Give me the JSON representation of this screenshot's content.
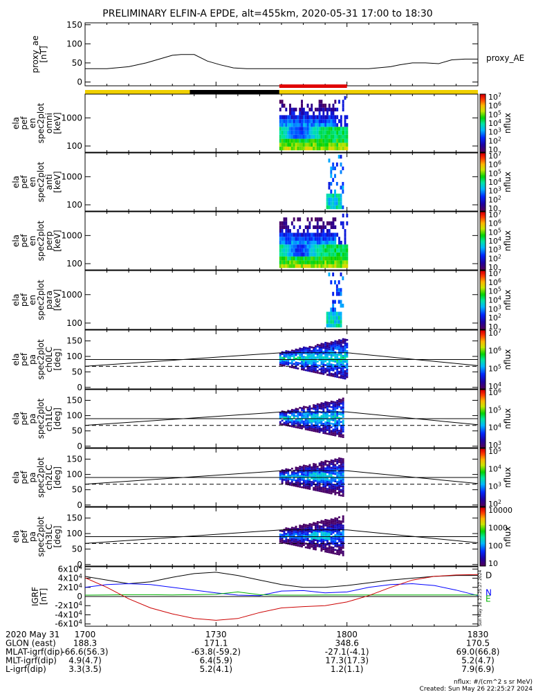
{
  "title": "PRELIMINARY ELFIN-A EPDE, alt=455km, 2020-05-31 17:00 to 18:30",
  "footer": {
    "units": "nflux: #/(cm^2 s sr MeV)",
    "created": "Created: Sun May 26 22:25:27 2024",
    "side_stamp": "Sun May 26 22:25:27 2024"
  },
  "time_axis": {
    "ticks": [
      "1700",
      "1730",
      "1800",
      "1830"
    ],
    "tick_minutes": [
      0,
      30,
      60,
      90
    ],
    "range_minutes": [
      0,
      90
    ],
    "rows": [
      {
        "label": "2020 May 31",
        "values": [
          "1700",
          "1730",
          "1800",
          "1830"
        ]
      },
      {
        "label": "GLON (east)",
        "values": [
          "188.3",
          "171.1",
          "348.6",
          "170.5"
        ]
      },
      {
        "label": "MLAT-igrf(dip)",
        "values": [
          "-66.6(56.3)",
          "-63.8(-59.2)",
          "-27.1(-4.1)",
          "69.0(66.8)"
        ]
      },
      {
        "label": "MLT-igrf(dip)",
        "values": [
          "4.9(4.7)",
          "6.4(5.9)",
          "17.3(17.3)",
          "5.2(4.7)"
        ]
      },
      {
        "label": "L-igrf(dip)",
        "values": [
          "3.3(3.5)",
          "5.2(4.1)",
          "1.2(1.1)",
          "7.9(6.9)"
        ]
      }
    ]
  },
  "status_bar": {
    "colors": {
      "yellow": "#f0d000",
      "black": "#000000",
      "red": "#e00000"
    },
    "segments": [
      {
        "color": "yellow",
        "start": 0,
        "end": 24
      },
      {
        "color": "black",
        "start": 24,
        "end": 44.5
      },
      {
        "color": "yellow",
        "start": 44.5,
        "end": 90
      }
    ],
    "science": {
      "color": "red",
      "start": 44.5,
      "end": 60
    }
  },
  "chart_data": [
    {
      "type": "line",
      "panel": "proxy_ae",
      "ylabel": [
        "proxy_ae",
        "[nT]"
      ],
      "legend": "proxy_AE",
      "ylim": [
        -10,
        155
      ],
      "yticks": [
        0,
        50,
        100,
        150
      ],
      "x": [
        0,
        5,
        10,
        14,
        17,
        20,
        22,
        25,
        28,
        31,
        34,
        37,
        40,
        45,
        50,
        55,
        60,
        65,
        70,
        72,
        75,
        78,
        81,
        84,
        87,
        90
      ],
      "y": [
        35,
        35,
        40,
        50,
        60,
        70,
        72,
        72,
        55,
        45,
        37,
        35,
        35,
        35,
        35,
        35,
        35,
        35,
        40,
        45,
        50,
        50,
        48,
        58,
        60,
        60
      ]
    },
    {
      "type": "heatmap",
      "panel": "omni",
      "ylabel": [
        "ela",
        "pef",
        "en",
        "spec2plot",
        "omni",
        "[keV]"
      ],
      "ylog": true,
      "ylim": [
        60,
        7000
      ],
      "yticks": [
        100,
        1000
      ],
      "ytick_labels": [
        "100",
        "1000"
      ],
      "colorbar": {
        "label": "nflux",
        "ticks": [
          "10",
          "10^2",
          "10^3",
          "10^4",
          "10^5",
          "10^6",
          "10^7"
        ]
      },
      "coverage_minutes": [
        44.5,
        60
      ]
    },
    {
      "type": "heatmap",
      "panel": "anti",
      "ylabel": [
        "ela",
        "pef",
        "en",
        "spec2plot",
        "anti",
        "[keV]"
      ],
      "ylog": true,
      "ylim": [
        60,
        7000
      ],
      "yticks": [
        100,
        1000
      ],
      "ytick_labels": [
        "100",
        "1000"
      ],
      "colorbar": {
        "label": "nflux",
        "ticks": [
          "10",
          "10^2",
          "10^3",
          "10^4",
          "10^5",
          "10^6",
          "10^7"
        ]
      },
      "coverage_minutes": [
        53,
        59
      ]
    },
    {
      "type": "heatmap",
      "panel": "perp",
      "ylabel": [
        "ela",
        "pef",
        "en",
        "spec2plot",
        "perp",
        "[keV]"
      ],
      "ylog": true,
      "ylim": [
        60,
        7000
      ],
      "yticks": [
        100,
        1000
      ],
      "ytick_labels": [
        "100",
        "1000"
      ],
      "colorbar": {
        "label": "nflux",
        "ticks": [
          "10",
          "10^2",
          "10^3",
          "10^4",
          "10^5",
          "10^6",
          "10^7"
        ]
      },
      "coverage_minutes": [
        44.5,
        60
      ]
    },
    {
      "type": "heatmap",
      "panel": "para",
      "ylabel": [
        "ela",
        "pef",
        "en",
        "spec2plot",
        "para",
        "[keV]"
      ],
      "ylog": true,
      "ylim": [
        60,
        7000
      ],
      "yticks": [
        100,
        1000
      ],
      "ytick_labels": [
        "100",
        "1000"
      ],
      "colorbar": {
        "label": "nflux",
        "ticks": [
          "10",
          "10^2",
          "10^3",
          "10^4",
          "10^5",
          "10^6",
          "10^7"
        ]
      },
      "coverage_minutes": [
        53,
        59
      ]
    },
    {
      "type": "heatmap",
      "panel": "ch0LC",
      "ylabel": [
        "ela",
        "pef",
        "pa",
        "spec2plot",
        "ch0LC",
        "[deg]"
      ],
      "ylim": [
        -5,
        185
      ],
      "yticks": [
        0,
        50,
        100,
        150
      ],
      "ytick_labels": [
        "0",
        "50",
        "100",
        "150"
      ],
      "colorbar": {
        "label": "nflux",
        "ticks": [
          "10^4",
          "10^5",
          "10^6",
          "10^7"
        ]
      },
      "coverage_minutes": [
        44.5,
        60
      ]
    },
    {
      "type": "heatmap",
      "panel": "ch1LC",
      "ylabel": [
        "ela",
        "pef",
        "pa",
        "spec2plot",
        "ch1LC",
        "[deg]"
      ],
      "ylim": [
        -5,
        185
      ],
      "yticks": [
        0,
        50,
        100,
        150
      ],
      "ytick_labels": [
        "0",
        "50",
        "100",
        "150"
      ],
      "colorbar": {
        "label": "nflux",
        "ticks": [
          "10^3",
          "10^4",
          "10^5",
          "10^6"
        ]
      },
      "coverage_minutes": [
        44.5,
        59
      ]
    },
    {
      "type": "heatmap",
      "panel": "ch2LC",
      "ylabel": [
        "ela",
        "pef",
        "pa",
        "spec2plot",
        "ch2LC",
        "[deg]"
      ],
      "ylim": [
        -5,
        185
      ],
      "yticks": [
        0,
        50,
        100,
        150
      ],
      "ytick_labels": [
        "0",
        "50",
        "100",
        "150"
      ],
      "colorbar": {
        "label": "nflux",
        "ticks": [
          "10^2",
          "10^3",
          "10^4",
          "10^5"
        ]
      },
      "coverage_minutes": [
        44.5,
        59
      ]
    },
    {
      "type": "heatmap",
      "panel": "ch3LC",
      "ylabel": [
        "ela",
        "pef",
        "pa",
        "spec2plot",
        "ch3LC",
        "[deg]"
      ],
      "ylim": [
        -5,
        185
      ],
      "yticks": [
        0,
        50,
        100,
        150
      ],
      "ytick_labels": [
        "0",
        "50",
        "100",
        "150"
      ],
      "colorbar": {
        "label": "nflux",
        "ticks": [
          "10",
          "100",
          "1000",
          "10000"
        ]
      },
      "coverage_minutes": [
        44.5,
        59
      ]
    },
    {
      "type": "line",
      "panel": "igrf",
      "ylabel": [
        "IGRF",
        "[nT]"
      ],
      "ylim": [
        -65000,
        65000
      ],
      "yticks": [
        -60000,
        -40000,
        -20000,
        0,
        20000,
        40000,
        60000
      ],
      "ytick_labels": [
        "-6×10^4",
        "-4×10^4",
        "-2×10^4",
        "0",
        "2×10^4",
        "4×10^4",
        "6×10^4"
      ],
      "x": [
        0,
        5,
        10,
        15,
        20,
        25,
        30,
        35,
        40,
        45,
        50,
        55,
        60,
        65,
        70,
        75,
        80,
        85,
        90
      ],
      "series": [
        {
          "name": "D",
          "color": "#000000",
          "values": [
            44000,
            36000,
            28000,
            32000,
            42000,
            50000,
            53000,
            46000,
            36000,
            26000,
            20000,
            20000,
            24000,
            30000,
            36000,
            40000,
            44000,
            46000,
            46000
          ]
        },
        {
          "name": "N",
          "color": "#0000ff",
          "values": [
            20000,
            26000,
            28000,
            26000,
            20000,
            14000,
            8000,
            3000,
            2000,
            12000,
            13000,
            8000,
            10000,
            20000,
            26000,
            28000,
            24000,
            14000,
            2000
          ]
        },
        {
          "name": "E",
          "color": "#00b000",
          "values": [
            3000,
            3500,
            4000,
            4000,
            3500,
            4000,
            5000,
            10000,
            4000,
            3000,
            3000,
            3500,
            3500,
            3500,
            3500,
            3500,
            3500,
            3500,
            3500
          ]
        },
        {
          "name": "",
          "color": "#cc0000",
          "values": [
            41000,
            20000,
            -5000,
            -25000,
            -38000,
            -48000,
            -52000,
            -48000,
            -35000,
            -25000,
            -22000,
            -20000,
            -12000,
            2000,
            20000,
            36000,
            44000,
            47000,
            48000
          ]
        }
      ]
    }
  ]
}
